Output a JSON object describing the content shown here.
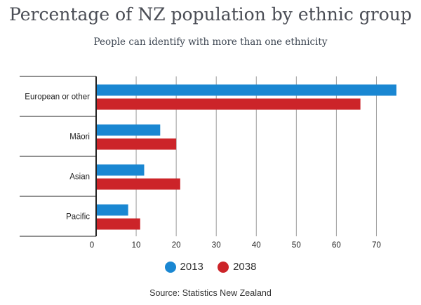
{
  "chart_data": {
    "type": "bar",
    "orientation": "horizontal",
    "title": "Percentage of NZ population by ethnic group",
    "subtitle": "People can identify with more than one ethnicity",
    "categories": [
      "European or other",
      "Māori",
      "Asian",
      "Pacific"
    ],
    "series": [
      {
        "name": "2013",
        "color": "#1a87d2",
        "values": [
          75,
          16,
          12,
          8
        ]
      },
      {
        "name": "2038",
        "color": "#cc2429",
        "values": [
          66,
          20,
          21,
          11
        ]
      }
    ],
    "xlim": [
      0,
      75
    ],
    "xticks": [
      0,
      10,
      20,
      30,
      40,
      50,
      60,
      70
    ],
    "xlabel": "",
    "ylabel": "",
    "grid": true,
    "legend": "bottom",
    "source": "Source: Statistics New Zealand"
  }
}
